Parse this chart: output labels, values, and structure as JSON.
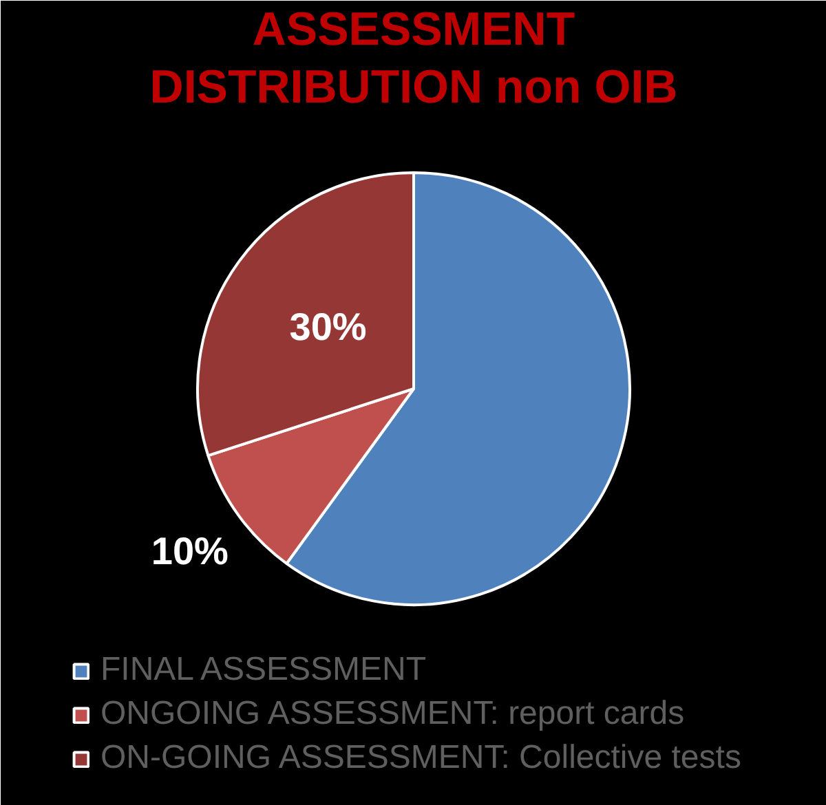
{
  "chart_data": {
    "type": "pie",
    "title": "ASSESSMENT DISTRIBUTION non OIB",
    "categories": [
      "FINAL ASSESSMENT",
      "ONGOING ASSESSMENT: report cards",
      "ON-GOING ASSESSMENT: Collective tests"
    ],
    "values": [
      60,
      10,
      30
    ],
    "colors": [
      "#4f81bd",
      "#c0504d",
      "#953735"
    ],
    "value_labels": [
      null,
      "10%",
      "30%"
    ],
    "legend": "bottom"
  }
}
